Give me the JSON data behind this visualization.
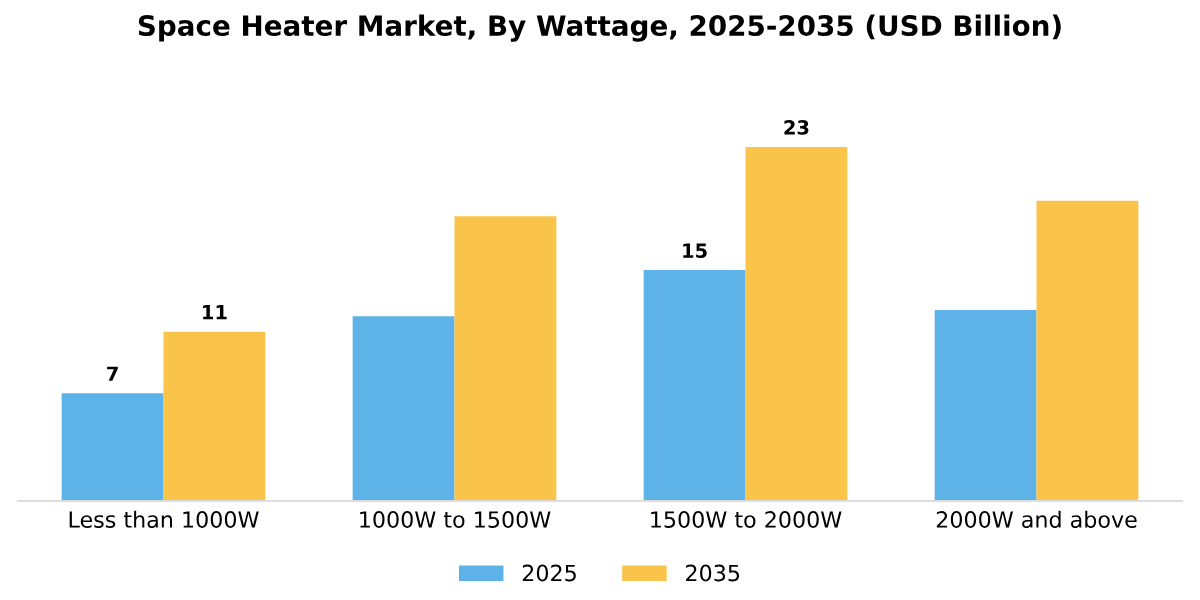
{
  "chart_data": {
    "type": "bar",
    "title": "Space Heater Market, By Wattage, 2025-2035 (USD Billion)",
    "categories": [
      "Less than 1000W",
      "1000W to 1500W",
      "1500W to 2000W",
      "2000W and above"
    ],
    "series": [
      {
        "name": "2025",
        "color": "#5db3e8",
        "values": [
          7,
          12,
          15,
          12.4
        ],
        "value_labels": [
          "7",
          null,
          "15",
          null
        ]
      },
      {
        "name": "2035",
        "color": "#f9c449",
        "values": [
          11,
          18.5,
          23,
          19.5
        ],
        "value_labels": [
          "11",
          null,
          "23",
          null
        ]
      }
    ],
    "legend": "bottom",
    "grid": false
  }
}
